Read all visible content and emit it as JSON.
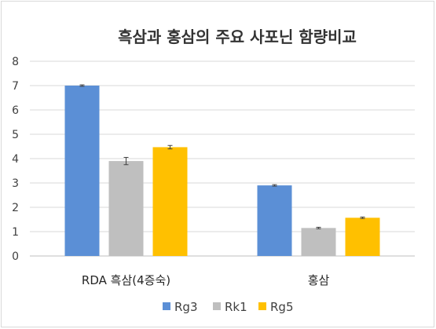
{
  "chart_data": {
    "type": "bar",
    "title": "흑삼과 홍삼의 주요 사포닌 함량비교",
    "xlabel": "",
    "ylabel": "",
    "categories": [
      "RDA 흑삼(4증숙)",
      "홍삼"
    ],
    "series": [
      {
        "name": "Rg3",
        "values": [
          7.0,
          2.9
        ],
        "errors": [
          0.03,
          0.03
        ],
        "color": "#5b8fd6"
      },
      {
        "name": "Rk1",
        "values": [
          3.9,
          1.15
        ],
        "errors": [
          0.15,
          0.03
        ],
        "color": "#bfbfbf"
      },
      {
        "name": "Rg5",
        "values": [
          4.47,
          1.57
        ],
        "errors": [
          0.07,
          0.03
        ],
        "color": "#ffc000"
      }
    ],
    "ylim": [
      0,
      8
    ],
    "yticks": [
      "0",
      "1",
      "2",
      "3",
      "4",
      "5",
      "6",
      "7",
      "8"
    ],
    "grid": true,
    "legend_position": "bottom",
    "colors": {
      "grid": "#d9d9d9",
      "axis": "#bfbfbf",
      "errorbar": "#404040"
    }
  }
}
